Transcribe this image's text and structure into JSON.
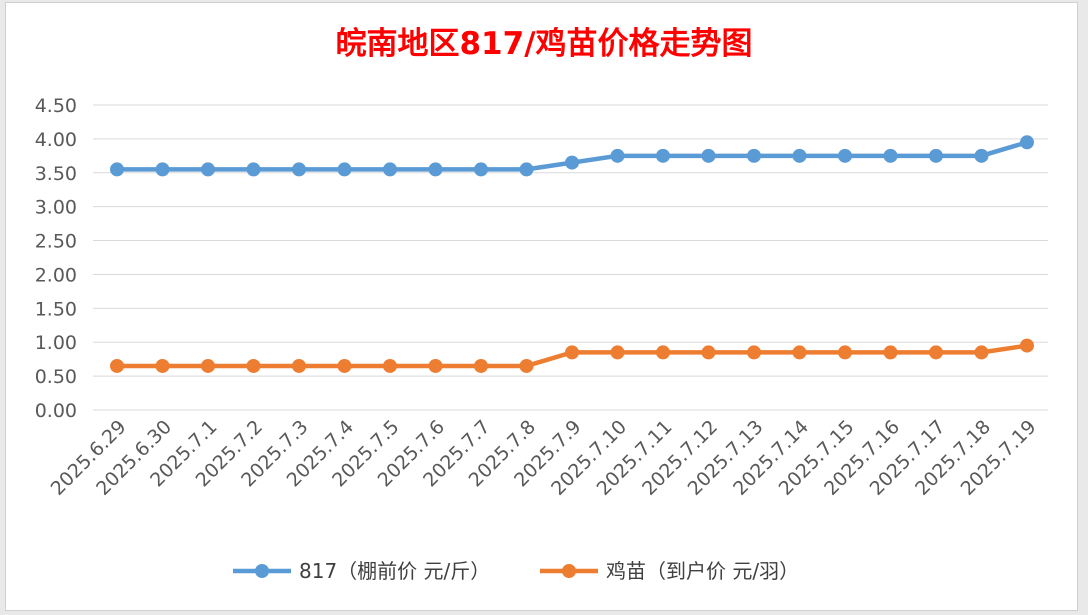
{
  "chart_data": {
    "type": "line",
    "title": "皖南地区817/鸡苗价格走势图",
    "title_color": "#ff0000",
    "categories": [
      "2025.6.29",
      "2025.6.30",
      "2025.7.1",
      "2025.7.2",
      "2025.7.3",
      "2025.7.4",
      "2025.7.5",
      "2025.7.6",
      "2025.7.7",
      "2025.7.8",
      "2025.7.9",
      "2025.7.10",
      "2025.7.11",
      "2025.7.12",
      "2025.7.13",
      "2025.7.14",
      "2025.7.15",
      "2025.7.16",
      "2025.7.17",
      "2025.7.18",
      "2025.7.19"
    ],
    "series": [
      {
        "name": "817（棚前价 元/斤）",
        "color": "#5b9bd5",
        "values": [
          3.55,
          3.55,
          3.55,
          3.55,
          3.55,
          3.55,
          3.55,
          3.55,
          3.55,
          3.55,
          3.65,
          3.75,
          3.75,
          3.75,
          3.75,
          3.75,
          3.75,
          3.75,
          3.75,
          3.75,
          3.95
        ]
      },
      {
        "name": "鸡苗（到户价 元/羽）",
        "color": "#ed7d31",
        "values": [
          0.65,
          0.65,
          0.65,
          0.65,
          0.65,
          0.65,
          0.65,
          0.65,
          0.65,
          0.65,
          0.85,
          0.85,
          0.85,
          0.85,
          0.85,
          0.85,
          0.85,
          0.85,
          0.85,
          0.85,
          0.95
        ]
      }
    ],
    "yticks": [
      "0.00",
      "0.50",
      "1.00",
      "1.50",
      "2.00",
      "2.50",
      "3.00",
      "3.50",
      "4.00",
      "4.50"
    ],
    "ylim": [
      0,
      4.5
    ],
    "grid": true,
    "legend_position": "bottom"
  }
}
